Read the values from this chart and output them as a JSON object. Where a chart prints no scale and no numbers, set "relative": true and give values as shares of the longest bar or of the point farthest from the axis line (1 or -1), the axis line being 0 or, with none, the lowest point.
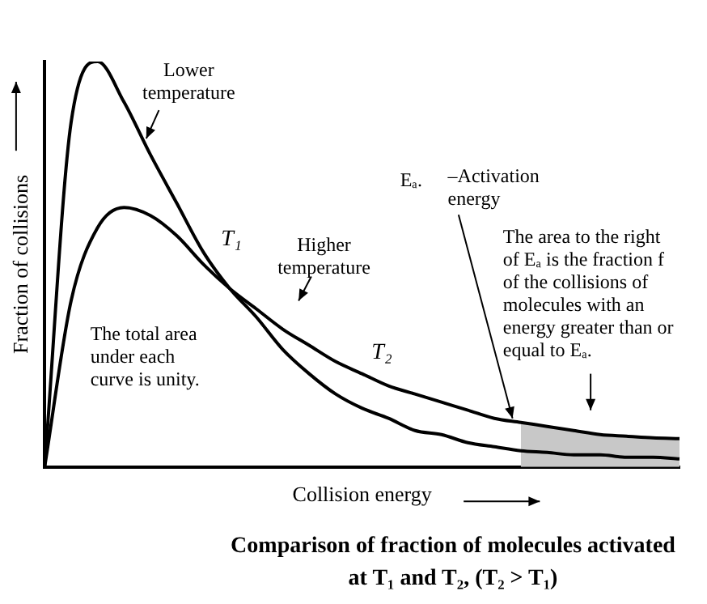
{
  "chart_data": {
    "type": "line",
    "relative": true,
    "title": "Comparison of fraction of molecules activated at T₁ and T₂, (T₂ > T₁)",
    "xlabel": "Collision energy",
    "ylabel": "Fraction of collisions",
    "categories": [
      null,
      null,
      null,
      null,
      null,
      null,
      null,
      null,
      null,
      null,
      null,
      null,
      null,
      null,
      null,
      null,
      null,
      null,
      null,
      null,
      null,
      null,
      null,
      null,
      null
    ],
    "series": [
      {
        "name": "T₁",
        "color": "#000000",
        "values": [
          0,
          0.85,
          1,
          0.9,
          0.77,
          0.65,
          0.53,
          0.44,
          0.37,
          0.29,
          0.23,
          0.18,
          0.145,
          0.12,
          0.09,
          0.08,
          0.06,
          0.05,
          0.04,
          0.036,
          0.03,
          0.03,
          0.024,
          0.024,
          0.02
        ]
      },
      {
        "name": "T₂",
        "color": "#000000",
        "values": [
          0,
          0.41,
          0.59,
          0.64,
          0.62,
          0.57,
          0.5,
          0.44,
          0.39,
          0.34,
          0.3,
          0.26,
          0.23,
          0.2,
          0.18,
          0.16,
          0.14,
          0.12,
          0.11,
          0.1,
          0.09,
          0.08,
          0.076,
          0.072,
          0.07
        ]
      },
      {
        "type": "area",
        "color": "#c8c8c8",
        "values": [
          null,
          null,
          null,
          null,
          null,
          null,
          null,
          null,
          null,
          null,
          null,
          null,
          null,
          null,
          null,
          null,
          null,
          null,
          0.11,
          0.1,
          0.09,
          0.08,
          0.076,
          0.072,
          0.07
        ]
      }
    ],
    "annotations": [
      "Lower temperature",
      "Higher temperature",
      "Eₐ.",
      "–Activation energy",
      "The area to the right of Eₐ is the fraction f of the collisions of molecules with an energy greater than or equal to Eₐ.",
      "The total area under each curve is unity."
    ],
    "legend": false,
    "grid": false,
    "marker": "none",
    "line_style": "solid"
  }
}
